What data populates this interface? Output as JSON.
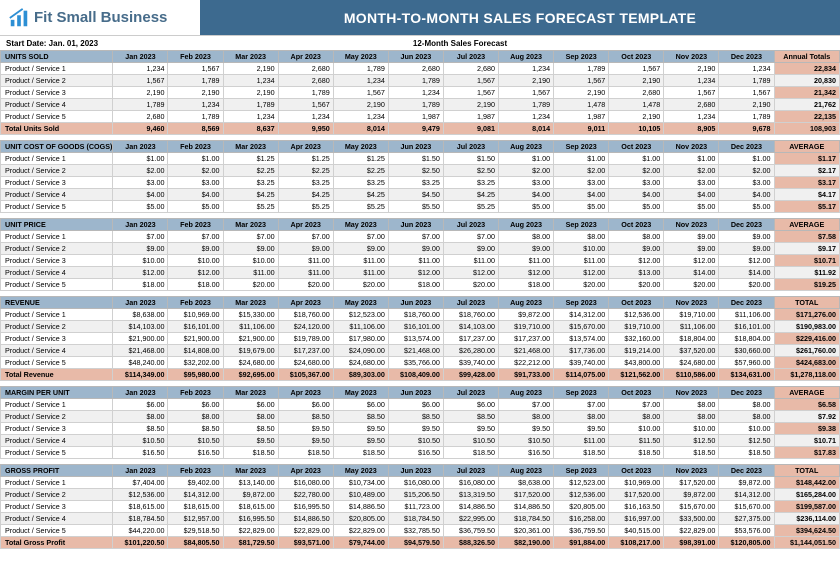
{
  "brand": {
    "name": "Fit Small Business",
    "icon_color": "#2d8fd4"
  },
  "title": "MONTH-TO-MONTH SALES FORECAST TEMPLATE",
  "start_date_label": "Start Date: Jan. 01, 2023",
  "forecast_label": "12-Month Sales Forecast",
  "months": [
    "Jan 2023",
    "Feb 2023",
    "Mar 2023",
    "Apr 2023",
    "May 2023",
    "Jun 2023",
    "Jul 2023",
    "Aug 2023",
    "Sep 2023",
    "Oct 2023",
    "Nov 2023",
    "Dec 2023"
  ],
  "colors": {
    "header_row_bg": "#9db6cc",
    "total_bg": "#e8baa8",
    "alt_row_bg": "#f0f0f0",
    "title_bar_bg": "#3d6a8f",
    "grid": "#d0d0d0"
  },
  "sections": [
    {
      "name": "UNITS SOLD",
      "total_header": "Annual Totals",
      "rows": [
        {
          "label": "Product / Service 1",
          "vals": [
            "1,234",
            "1,567",
            "2,190",
            "2,680",
            "1,789",
            "2,680",
            "2,680",
            "1,234",
            "1,789",
            "1,567",
            "2,190",
            "1,234"
          ],
          "total": "22,834"
        },
        {
          "label": "Product / Service 2",
          "vals": [
            "1,567",
            "1,789",
            "1,234",
            "2,680",
            "1,234",
            "1,789",
            "1,567",
            "2,190",
            "1,567",
            "2,190",
            "1,234",
            "1,789"
          ],
          "total": "20,830"
        },
        {
          "label": "Product / Service 3",
          "vals": [
            "2,190",
            "2,190",
            "2,190",
            "1,789",
            "1,567",
            "1,234",
            "1,567",
            "1,567",
            "2,190",
            "2,680",
            "1,567",
            "1,567"
          ],
          "total": "21,342"
        },
        {
          "label": "Product / Service 4",
          "vals": [
            "1,789",
            "1,234",
            "1,789",
            "1,567",
            "2,190",
            "1,789",
            "2,190",
            "1,789",
            "1,478",
            "1,478",
            "2,680",
            "2,190"
          ],
          "total": "21,762"
        },
        {
          "label": "Product / Service 5",
          "vals": [
            "2,680",
            "1,789",
            "1,234",
            "1,234",
            "1,234",
            "1,987",
            "1,987",
            "1,234",
            "1,987",
            "2,190",
            "1,234",
            "1,789"
          ],
          "total": "22,135"
        }
      ],
      "total_row": {
        "label": "Total Units Sold",
        "vals": [
          "9,460",
          "8,569",
          "8,637",
          "9,950",
          "8,014",
          "9,479",
          "9,081",
          "8,014",
          "9,011",
          "10,105",
          "8,905",
          "9,678"
        ],
        "total": "108,903"
      }
    },
    {
      "name": "UNIT COST OF GOODS (COGS)",
      "total_header": "AVERAGE",
      "rows": [
        {
          "label": "Product / Service 1",
          "vals": [
            "$1.00",
            "$1.00",
            "$1.25",
            "$1.25",
            "$1.25",
            "$1.50",
            "$1.50",
            "$1.00",
            "$1.00",
            "$1.00",
            "$1.00",
            "$1.00"
          ],
          "total": "$1.17"
        },
        {
          "label": "Product / Service 2",
          "vals": [
            "$2.00",
            "$2.00",
            "$2.25",
            "$2.25",
            "$2.25",
            "$2.50",
            "$2.50",
            "$2.00",
            "$2.00",
            "$2.00",
            "$2.00",
            "$2.00"
          ],
          "total": "$2.17"
        },
        {
          "label": "Product / Service 3",
          "vals": [
            "$3.00",
            "$3.00",
            "$3.25",
            "$3.25",
            "$3.25",
            "$3.25",
            "$3.25",
            "$3.00",
            "$3.00",
            "$3.00",
            "$3.00",
            "$3.00"
          ],
          "total": "$3.17"
        },
        {
          "label": "Product / Service 4",
          "vals": [
            "$4.00",
            "$4.00",
            "$4.25",
            "$4.25",
            "$4.25",
            "$4.50",
            "$4.25",
            "$4.00",
            "$4.00",
            "$4.00",
            "$4.00",
            "$4.00"
          ],
          "total": "$4.17"
        },
        {
          "label": "Product / Service 5",
          "vals": [
            "$5.00",
            "$5.00",
            "$5.25",
            "$5.25",
            "$5.25",
            "$5.50",
            "$5.25",
            "$5.00",
            "$5.00",
            "$5.00",
            "$5.00",
            "$5.00"
          ],
          "total": "$5.17"
        }
      ]
    },
    {
      "name": "UNIT PRICE",
      "total_header": "AVERAGE",
      "rows": [
        {
          "label": "Product / Service 1",
          "vals": [
            "$7.00",
            "$7.00",
            "$7.00",
            "$7.00",
            "$7.00",
            "$7.00",
            "$7.00",
            "$8.00",
            "$8.00",
            "$8.00",
            "$9.00",
            "$9.00"
          ],
          "total": "$7.58"
        },
        {
          "label": "Product / Service 2",
          "vals": [
            "$9.00",
            "$9.00",
            "$9.00",
            "$9.00",
            "$9.00",
            "$9.00",
            "$9.00",
            "$9.00",
            "$10.00",
            "$9.00",
            "$9.00",
            "$9.00"
          ],
          "total": "$9.17"
        },
        {
          "label": "Product / Service 3",
          "vals": [
            "$10.00",
            "$10.00",
            "$10.00",
            "$11.00",
            "$11.00",
            "$11.00",
            "$11.00",
            "$11.00",
            "$11.00",
            "$12.00",
            "$12.00",
            "$12.00"
          ],
          "total": "$10.71"
        },
        {
          "label": "Product / Service 4",
          "vals": [
            "$12.00",
            "$12.00",
            "$11.00",
            "$11.00",
            "$11.00",
            "$12.00",
            "$12.00",
            "$12.00",
            "$12.00",
            "$13.00",
            "$14.00",
            "$14.00"
          ],
          "total": "$11.92"
        },
        {
          "label": "Product / Service 5",
          "vals": [
            "$18.00",
            "$18.00",
            "$20.00",
            "$20.00",
            "$20.00",
            "$18.00",
            "$20.00",
            "$18.00",
            "$20.00",
            "$20.00",
            "$20.00",
            "$20.00"
          ],
          "total": "$19.25"
        }
      ]
    },
    {
      "name": "REVENUE",
      "total_header": "TOTAL",
      "rows": [
        {
          "label": "Product / Service 1",
          "vals": [
            "$8,638.00",
            "$10,969.00",
            "$15,330.00",
            "$18,760.00",
            "$12,523.00",
            "$18,760.00",
            "$18,760.00",
            "$9,872.00",
            "$14,312.00",
            "$12,536.00",
            "$19,710.00",
            "$11,106.00"
          ],
          "total": "$171,276.00"
        },
        {
          "label": "Product / Service 2",
          "vals": [
            "$14,103.00",
            "$16,101.00",
            "$11,106.00",
            "$24,120.00",
            "$11,106.00",
            "$16,101.00",
            "$14,103.00",
            "$19,710.00",
            "$15,670.00",
            "$19,710.00",
            "$11,106.00",
            "$16,101.00"
          ],
          "total": "$190,983.00"
        },
        {
          "label": "Product / Service 3",
          "vals": [
            "$21,900.00",
            "$21,900.00",
            "$21,900.00",
            "$19,789.00",
            "$17,980.00",
            "$13,574.00",
            "$17,237.00",
            "$17,237.00",
            "$13,574.00",
            "$32,160.00",
            "$18,804.00",
            "$18,804.00"
          ],
          "total": "$229,416.00"
        },
        {
          "label": "Product / Service 4",
          "vals": [
            "$21,468.00",
            "$14,808.00",
            "$19,679.00",
            "$17,237.00",
            "$24,090.00",
            "$21,468.00",
            "$26,280.00",
            "$21,468.00",
            "$17,736.00",
            "$19,214.00",
            "$37,520.00",
            "$30,660.00"
          ],
          "total": "$261,760.00"
        },
        {
          "label": "Product / Service 5",
          "vals": [
            "$48,240.00",
            "$32,202.00",
            "$24,680.00",
            "$24,680.00",
            "$24,680.00",
            "$35,766.00",
            "$39,740.00",
            "$22,212.00",
            "$39,740.00",
            "$43,800.00",
            "$24,680.00",
            "$57,960.00"
          ],
          "total": "$424,683.00"
        }
      ],
      "total_row": {
        "label": "Total Revenue",
        "vals": [
          "$114,349.00",
          "$95,980.00",
          "$92,695.00",
          "$105,367.00",
          "$89,303.00",
          "$108,409.00",
          "$99,428.00",
          "$91,733.00",
          "$114,075.00",
          "$121,562.00",
          "$110,586.00",
          "$134,631.00"
        ],
        "total": "$1,278,118.00"
      }
    },
    {
      "name": "MARGIN PER UNIT",
      "total_header": "AVERAGE",
      "rows": [
        {
          "label": "Product / Service 1",
          "vals": [
            "$6.00",
            "$6.00",
            "$6.00",
            "$6.00",
            "$6.00",
            "$6.00",
            "$6.00",
            "$7.00",
            "$7.00",
            "$7.00",
            "$8.00",
            "$8.00"
          ],
          "total": "$6.58"
        },
        {
          "label": "Product / Service 2",
          "vals": [
            "$8.00",
            "$8.00",
            "$8.00",
            "$8.50",
            "$8.50",
            "$8.50",
            "$8.50",
            "$8.00",
            "$8.00",
            "$8.00",
            "$8.00",
            "$8.00"
          ],
          "total": "$7.92"
        },
        {
          "label": "Product / Service 3",
          "vals": [
            "$8.50",
            "$8.50",
            "$8.50",
            "$9.50",
            "$9.50",
            "$9.50",
            "$9.50",
            "$9.50",
            "$9.50",
            "$10.00",
            "$10.00",
            "$10.00"
          ],
          "total": "$9.38"
        },
        {
          "label": "Product / Service 4",
          "vals": [
            "$10.50",
            "$10.50",
            "$9.50",
            "$9.50",
            "$9.50",
            "$10.50",
            "$10.50",
            "$10.50",
            "$11.00",
            "$11.50",
            "$12.50",
            "$12.50"
          ],
          "total": "$10.71"
        },
        {
          "label": "Product / Service 5",
          "vals": [
            "$16.50",
            "$16.50",
            "$18.50",
            "$18.50",
            "$18.50",
            "$16.50",
            "$18.50",
            "$16.50",
            "$18.50",
            "$18.50",
            "$18.50",
            "$18.50"
          ],
          "total": "$17.83"
        }
      ]
    },
    {
      "name": "GROSS PROFIT",
      "total_header": "TOTAL",
      "rows": [
        {
          "label": "Product / Service 1",
          "vals": [
            "$7,404.00",
            "$9,402.00",
            "$13,140.00",
            "$16,080.00",
            "$10,734.00",
            "$16,080.00",
            "$16,080.00",
            "$8,638.00",
            "$12,523.00",
            "$10,969.00",
            "$17,520.00",
            "$9,872.00"
          ],
          "total": "$148,442.00"
        },
        {
          "label": "Product / Service 2",
          "vals": [
            "$12,536.00",
            "$14,312.00",
            "$9,872.00",
            "$22,780.00",
            "$10,489.00",
            "$15,206.50",
            "$13,319.50",
            "$17,520.00",
            "$12,536.00",
            "$17,520.00",
            "$9,872.00",
            "$14,312.00"
          ],
          "total": "$165,284.00"
        },
        {
          "label": "Product / Service 3",
          "vals": [
            "$18,615.00",
            "$18,615.00",
            "$18,615.00",
            "$16,995.50",
            "$14,886.50",
            "$11,723.00",
            "$14,886.50",
            "$14,886.50",
            "$20,805.00",
            "$16,163.50",
            "$15,670.00",
            "$15,670.00"
          ],
          "total": "$199,587.00"
        },
        {
          "label": "Product / Service 4",
          "vals": [
            "$18,784.50",
            "$12,957.00",
            "$16,995.50",
            "$14,886.50",
            "$20,805.00",
            "$18,784.50",
            "$22,995.00",
            "$18,784.50",
            "$16,258.00",
            "$16,997.00",
            "$33,500.00",
            "$27,375.00"
          ],
          "total": "$236,114.00"
        },
        {
          "label": "Product / Service 5",
          "vals": [
            "$44,220.00",
            "$29,518.50",
            "$22,829.00",
            "$22,829.00",
            "$22,829.00",
            "$32,785.50",
            "$36,759.50",
            "$20,361.00",
            "$36,759.50",
            "$40,515.00",
            "$22,829.00",
            "$53,576.00"
          ],
          "total": "$394,624.50"
        }
      ],
      "total_row": {
        "label": "Total Gross Profit",
        "vals": [
          "$101,220.50",
          "$84,805.50",
          "$81,729.50",
          "$93,571.00",
          "$79,744.00",
          "$94,579.50",
          "$88,326.50",
          "$82,190.00",
          "$91,884.00",
          "$108,217.00",
          "$98,391.00",
          "$120,805.00"
        ],
        "total": "$1,144,051.50"
      }
    }
  ]
}
